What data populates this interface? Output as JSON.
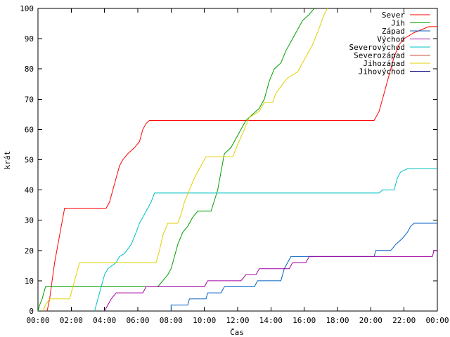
{
  "chart_data": {
    "type": "line",
    "title": "",
    "xlabel": "Čas",
    "ylabel": "krát",
    "xlim": [
      0,
      24
    ],
    "ylim": [
      0,
      100
    ],
    "x_ticks": [
      {
        "value": 0,
        "label": "00:00"
      },
      {
        "value": 2,
        "label": "02:00"
      },
      {
        "value": 4,
        "label": "04:00"
      },
      {
        "value": 6,
        "label": "06:00"
      },
      {
        "value": 8,
        "label": "08:00"
      },
      {
        "value": 10,
        "label": "10:00"
      },
      {
        "value": 12,
        "label": "12:00"
      },
      {
        "value": 14,
        "label": "14:00"
      },
      {
        "value": 16,
        "label": "16:00"
      },
      {
        "value": 18,
        "label": "18:00"
      },
      {
        "value": 20,
        "label": "20:00"
      },
      {
        "value": 22,
        "label": "22:00"
      },
      {
        "value": 24,
        "label": "00:00"
      }
    ],
    "y_ticks": [
      0,
      10,
      20,
      30,
      40,
      50,
      60,
      70,
      80,
      90,
      100
    ],
    "grid": false,
    "legend_position": "top-right",
    "series": [
      {
        "name": "Sever",
        "color": "#ff0000",
        "points": [
          [
            0.55,
            0
          ],
          [
            0.7,
            4
          ],
          [
            0.85,
            10
          ],
          [
            1.0,
            16
          ],
          [
            1.2,
            22
          ],
          [
            1.4,
            28
          ],
          [
            1.6,
            34
          ],
          [
            4.1,
            34
          ],
          [
            4.3,
            36
          ],
          [
            4.5,
            40
          ],
          [
            4.7,
            44
          ],
          [
            4.9,
            48
          ],
          [
            5.1,
            50
          ],
          [
            5.4,
            52
          ],
          [
            5.8,
            54
          ],
          [
            6.1,
            56
          ],
          [
            6.3,
            60
          ],
          [
            6.5,
            62
          ],
          [
            6.7,
            63
          ],
          [
            20.2,
            63
          ],
          [
            20.5,
            66
          ],
          [
            20.8,
            72
          ],
          [
            21.1,
            78
          ],
          [
            21.4,
            84
          ],
          [
            21.7,
            88
          ],
          [
            22.0,
            90
          ],
          [
            22.6,
            92
          ],
          [
            23.5,
            94
          ],
          [
            24,
            94
          ]
        ]
      },
      {
        "name": "Jih",
        "color": "#00a000",
        "points": [
          [
            0,
            0
          ],
          [
            0.1,
            2
          ],
          [
            0.25,
            4
          ],
          [
            0.45,
            8
          ],
          [
            7.2,
            8
          ],
          [
            7.5,
            10
          ],
          [
            7.8,
            12
          ],
          [
            8.0,
            14
          ],
          [
            8.2,
            18
          ],
          [
            8.4,
            22
          ],
          [
            8.7,
            26
          ],
          [
            9.0,
            28
          ],
          [
            9.3,
            31
          ],
          [
            9.6,
            33
          ],
          [
            10.4,
            33
          ],
          [
            10.8,
            40
          ],
          [
            11.0,
            46
          ],
          [
            11.2,
            52
          ],
          [
            11.6,
            54
          ],
          [
            11.9,
            57
          ],
          [
            12.2,
            60
          ],
          [
            12.5,
            63
          ],
          [
            12.9,
            65
          ],
          [
            13.3,
            67
          ],
          [
            13.6,
            70
          ],
          [
            13.9,
            76
          ],
          [
            14.2,
            80
          ],
          [
            14.6,
            82
          ],
          [
            14.9,
            86
          ],
          [
            15.3,
            90
          ],
          [
            15.6,
            93
          ],
          [
            15.9,
            96
          ],
          [
            16.3,
            98
          ],
          [
            16.6,
            100
          ]
        ]
      },
      {
        "name": "Západ",
        "color": "#0060c0",
        "points": [
          [
            8.0,
            0
          ],
          [
            8.0,
            2
          ],
          [
            9.0,
            2
          ],
          [
            9.1,
            4
          ],
          [
            10.1,
            4
          ],
          [
            10.2,
            6
          ],
          [
            11.0,
            6
          ],
          [
            11.2,
            8
          ],
          [
            13.0,
            8
          ],
          [
            13.2,
            10
          ],
          [
            14.6,
            10
          ],
          [
            14.8,
            14
          ],
          [
            15.0,
            16
          ],
          [
            15.2,
            18
          ],
          [
            20.2,
            18
          ],
          [
            20.3,
            20
          ],
          [
            21.2,
            20
          ],
          [
            21.5,
            22
          ],
          [
            21.9,
            24
          ],
          [
            22.2,
            26
          ],
          [
            22.4,
            28
          ],
          [
            22.6,
            29
          ],
          [
            24,
            29
          ]
        ]
      },
      {
        "name": "Východ",
        "color": "#a000a0",
        "points": [
          [
            4.0,
            0
          ],
          [
            4.2,
            2
          ],
          [
            4.4,
            4
          ],
          [
            4.7,
            6
          ],
          [
            6.3,
            6
          ],
          [
            6.5,
            8
          ],
          [
            10.0,
            8
          ],
          [
            10.2,
            10
          ],
          [
            12.2,
            10
          ],
          [
            12.5,
            12
          ],
          [
            13.1,
            12
          ],
          [
            13.3,
            14
          ],
          [
            15.1,
            14
          ],
          [
            15.3,
            16
          ],
          [
            16.1,
            16
          ],
          [
            16.3,
            18
          ],
          [
            23.7,
            18
          ],
          [
            23.8,
            20
          ],
          [
            24,
            20
          ]
        ]
      },
      {
        "name": "Severovýchod",
        "color": "#00c0c0",
        "points": [
          [
            3.4,
            0
          ],
          [
            3.6,
            4
          ],
          [
            3.8,
            8
          ],
          [
            4.0,
            12
          ],
          [
            4.2,
            14
          ],
          [
            4.7,
            16
          ],
          [
            4.9,
            18
          ],
          [
            5.2,
            19
          ],
          [
            5.6,
            22
          ],
          [
            5.9,
            26
          ],
          [
            6.1,
            29
          ],
          [
            6.4,
            32
          ],
          [
            6.6,
            34
          ],
          [
            6.8,
            36
          ],
          [
            7.0,
            39
          ],
          [
            20.5,
            39
          ],
          [
            20.7,
            40
          ],
          [
            21.4,
            40
          ],
          [
            21.6,
            44
          ],
          [
            21.8,
            46
          ],
          [
            22.2,
            47
          ],
          [
            24,
            47
          ]
        ]
      },
      {
        "name": "Severozápad",
        "color": "#c04020",
        "points": []
      },
      {
        "name": "Jihozápad",
        "color": "#e0d000",
        "points": [
          [
            0.3,
            0
          ],
          [
            0.45,
            2
          ],
          [
            0.7,
            4
          ],
          [
            1.9,
            4
          ],
          [
            2.1,
            8
          ],
          [
            2.3,
            12
          ],
          [
            2.5,
            16
          ],
          [
            7.1,
            16
          ],
          [
            7.3,
            20
          ],
          [
            7.5,
            25
          ],
          [
            7.8,
            29
          ],
          [
            8.4,
            29
          ],
          [
            8.6,
            32
          ],
          [
            8.8,
            36
          ],
          [
            9.1,
            40
          ],
          [
            9.4,
            44
          ],
          [
            9.8,
            48
          ],
          [
            10.1,
            51
          ],
          [
            11.7,
            51
          ],
          [
            12.0,
            55
          ],
          [
            12.4,
            60
          ],
          [
            12.7,
            64
          ],
          [
            13.0,
            65
          ],
          [
            13.3,
            66
          ],
          [
            13.6,
            69
          ],
          [
            14.1,
            69
          ],
          [
            14.3,
            72
          ],
          [
            14.7,
            75
          ],
          [
            15.0,
            77
          ],
          [
            15.6,
            79
          ],
          [
            15.9,
            82
          ],
          [
            16.2,
            85
          ],
          [
            16.5,
            88
          ],
          [
            16.8,
            92
          ],
          [
            17.0,
            95
          ],
          [
            17.2,
            98
          ],
          [
            17.4,
            100
          ]
        ]
      },
      {
        "name": "Jihovýchod",
        "color": "#000080",
        "points": []
      }
    ]
  }
}
